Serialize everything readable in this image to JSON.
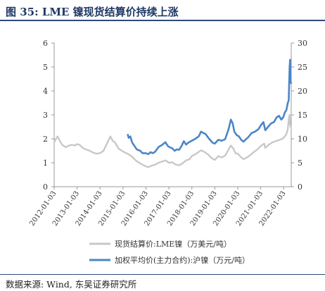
{
  "figure": {
    "title": "图 35:  LME 镍现货结算价持续上涨",
    "source": "数据来源:  Wind,  东吴证券研究所"
  },
  "chart_data": {
    "type": "line",
    "title": "",
    "xlabel": "",
    "ylabel": "",
    "x_ticks": [
      "2012-01-03",
      "2013-01-03",
      "2014-01-03",
      "2015-01-03",
      "2016-01-03",
      "2017-01-03",
      "2018-01-03",
      "2019-01-03",
      "2020-01-03",
      "2021-01-03",
      "2022-01-03"
    ],
    "x_range": [
      2012.0,
      2022.33
    ],
    "y_left": {
      "ticks": [
        0,
        1,
        2,
        3,
        4,
        5,
        6
      ],
      "range": [
        0,
        6
      ]
    },
    "y_right": {
      "ticks": [
        0,
        5,
        10,
        15,
        20,
        25,
        30
      ],
      "range": [
        0,
        30
      ]
    },
    "legend_position": "bottom",
    "series": [
      {
        "name": "现货结算价:LME镍（万美元/吨）",
        "axis": "left",
        "color": "#c8c8c8",
        "points": [
          [
            2012.0,
            1.85
          ],
          [
            2012.08,
            2.0
          ],
          [
            2012.15,
            2.1
          ],
          [
            2012.25,
            1.9
          ],
          [
            2012.35,
            1.75
          ],
          [
            2012.5,
            1.65
          ],
          [
            2012.6,
            1.7
          ],
          [
            2012.75,
            1.75
          ],
          [
            2012.9,
            1.72
          ],
          [
            2013.0,
            1.78
          ],
          [
            2013.1,
            1.75
          ],
          [
            2013.25,
            1.62
          ],
          [
            2013.4,
            1.55
          ],
          [
            2013.55,
            1.5
          ],
          [
            2013.7,
            1.42
          ],
          [
            2013.85,
            1.38
          ],
          [
            2014.0,
            1.4
          ],
          [
            2014.15,
            1.5
          ],
          [
            2014.3,
            1.8
          ],
          [
            2014.4,
            2.0
          ],
          [
            2014.45,
            2.1
          ],
          [
            2014.55,
            1.92
          ],
          [
            2014.65,
            1.85
          ],
          [
            2014.8,
            1.6
          ],
          [
            2014.95,
            1.5
          ],
          [
            2015.1,
            1.42
          ],
          [
            2015.25,
            1.35
          ],
          [
            2015.4,
            1.25
          ],
          [
            2015.55,
            1.1
          ],
          [
            2015.7,
            1.0
          ],
          [
            2015.85,
            0.92
          ],
          [
            2016.0,
            0.85
          ],
          [
            2016.1,
            0.82
          ],
          [
            2016.25,
            0.88
          ],
          [
            2016.4,
            0.92
          ],
          [
            2016.55,
            1.0
          ],
          [
            2016.7,
            1.05
          ],
          [
            2016.85,
            1.1
          ],
          [
            2017.0,
            1.0
          ],
          [
            2017.15,
            1.02
          ],
          [
            2017.3,
            0.92
          ],
          [
            2017.45,
            0.9
          ],
          [
            2017.6,
            0.98
          ],
          [
            2017.75,
            1.1
          ],
          [
            2017.9,
            1.15
          ],
          [
            2018.0,
            1.28
          ],
          [
            2018.15,
            1.35
          ],
          [
            2018.3,
            1.45
          ],
          [
            2018.4,
            1.52
          ],
          [
            2018.55,
            1.45
          ],
          [
            2018.7,
            1.35
          ],
          [
            2018.85,
            1.2
          ],
          [
            2019.0,
            1.12
          ],
          [
            2019.15,
            1.28
          ],
          [
            2019.3,
            1.22
          ],
          [
            2019.45,
            1.3
          ],
          [
            2019.6,
            1.55
          ],
          [
            2019.7,
            1.72
          ],
          [
            2019.8,
            1.6
          ],
          [
            2019.9,
            1.4
          ],
          [
            2020.0,
            1.38
          ],
          [
            2020.15,
            1.22
          ],
          [
            2020.25,
            1.15
          ],
          [
            2020.4,
            1.22
          ],
          [
            2020.55,
            1.32
          ],
          [
            2020.7,
            1.45
          ],
          [
            2020.85,
            1.55
          ],
          [
            2021.0,
            1.7
          ],
          [
            2021.15,
            1.8
          ],
          [
            2021.2,
            1.62
          ],
          [
            2021.35,
            1.75
          ],
          [
            2021.5,
            1.85
          ],
          [
            2021.65,
            1.9
          ],
          [
            2021.8,
            1.95
          ],
          [
            2021.95,
            2.0
          ],
          [
            2022.05,
            2.1
          ],
          [
            2022.12,
            2.2
          ],
          [
            2022.18,
            2.4
          ],
          [
            2022.22,
            2.8
          ],
          [
            2022.26,
            3.0
          ],
          [
            2022.28,
            2.6
          ],
          [
            2022.3,
            2.5
          ],
          [
            2022.33,
            2.55
          ]
        ]
      },
      {
        "name": "加权平均价(主力合约):沪镍（万元/吨）",
        "axis": "right",
        "color": "#4a86c8",
        "points": [
          [
            2015.2,
            11.0
          ],
          [
            2015.25,
            10.2
          ],
          [
            2015.32,
            10.5
          ],
          [
            2015.4,
            9.2
          ],
          [
            2015.5,
            8.5
          ],
          [
            2015.6,
            7.8
          ],
          [
            2015.75,
            7.5
          ],
          [
            2015.85,
            7.0
          ],
          [
            2016.0,
            7.0
          ],
          [
            2016.1,
            6.8
          ],
          [
            2016.2,
            7.2
          ],
          [
            2016.3,
            7.0
          ],
          [
            2016.4,
            7.3
          ],
          [
            2016.55,
            8.3
          ],
          [
            2016.7,
            8.7
          ],
          [
            2016.85,
            9.3
          ],
          [
            2016.95,
            8.5
          ],
          [
            2017.05,
            8.2
          ],
          [
            2017.15,
            8.0
          ],
          [
            2017.25,
            7.5
          ],
          [
            2017.35,
            7.8
          ],
          [
            2017.45,
            7.7
          ],
          [
            2017.55,
            8.5
          ],
          [
            2017.65,
            9.5
          ],
          [
            2017.75,
            8.8
          ],
          [
            2017.85,
            9.2
          ],
          [
            2018.0,
            9.6
          ],
          [
            2018.15,
            10.0
          ],
          [
            2018.3,
            10.5
          ],
          [
            2018.4,
            11.5
          ],
          [
            2018.5,
            11.2
          ],
          [
            2018.6,
            11.0
          ],
          [
            2018.75,
            10.0
          ],
          [
            2018.9,
            9.2
          ],
          [
            2019.0,
            9.0
          ],
          [
            2019.15,
            9.8
          ],
          [
            2019.3,
            9.6
          ],
          [
            2019.45,
            9.9
          ],
          [
            2019.6,
            12.0
          ],
          [
            2019.7,
            14.0
          ],
          [
            2019.78,
            13.2
          ],
          [
            2019.85,
            11.5
          ],
          [
            2019.95,
            10.8
          ],
          [
            2020.05,
            10.5
          ],
          [
            2020.15,
            9.8
          ],
          [
            2020.25,
            9.4
          ],
          [
            2020.35,
            9.9
          ],
          [
            2020.45,
            10.3
          ],
          [
            2020.6,
            11.2
          ],
          [
            2020.75,
            11.5
          ],
          [
            2020.9,
            12.0
          ],
          [
            2021.0,
            12.8
          ],
          [
            2021.12,
            13.5
          ],
          [
            2021.2,
            11.8
          ],
          [
            2021.32,
            12.5
          ],
          [
            2021.45,
            13.2
          ],
          [
            2021.58,
            13.5
          ],
          [
            2021.7,
            14.5
          ],
          [
            2021.8,
            14.8
          ],
          [
            2021.9,
            14.0
          ],
          [
            2021.98,
            14.5
          ],
          [
            2022.05,
            15.5
          ],
          [
            2022.12,
            16.0
          ],
          [
            2022.18,
            17.5
          ],
          [
            2022.22,
            18.0
          ],
          [
            2022.26,
            25.0
          ],
          [
            2022.28,
            26.5
          ],
          [
            2022.3,
            22.0
          ],
          [
            2022.33,
            21.5
          ]
        ]
      }
    ]
  }
}
